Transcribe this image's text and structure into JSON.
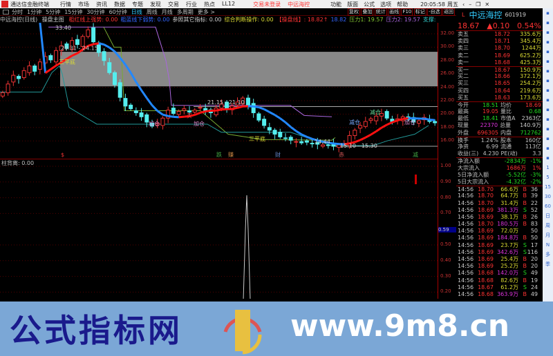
{
  "menubar": {
    "app_title": "通达信金融终端",
    "items": [
      "行情",
      "市场",
      "资讯",
      "数据",
      "专题",
      "发现",
      "交易",
      "行业",
      "热点",
      "LL12"
    ],
    "login": "交易未登录",
    "stock": "中远海控",
    "right": [
      "功能",
      "版面",
      "公式",
      "选项",
      "帮助"
    ],
    "clock": "20:05:58",
    "weekday": "周五"
  },
  "toolbar": {
    "periods": [
      "分时",
      "1分钟",
      "5分钟",
      "15分钟",
      "30分钟",
      "60分钟",
      "日线",
      "周线",
      "月线",
      "多周期",
      "更多 >"
    ],
    "active": "日线",
    "buttons": [
      "复权",
      "叠加",
      "统计",
      "画线",
      "F10",
      "标记",
      "-自选",
      "返回"
    ]
  },
  "chart_header": {
    "title": "中远海控(日线)",
    "indicator": "操盘主图",
    "items": [
      {
        "t": "粗红线上强势: 0.00",
        "c": "#f33"
      },
      {
        "t": "粗蓝线下弱势: 0.00",
        "c": "#36f"
      },
      {
        "t": "参照其它指标: 0.00",
        "c": "#ccc"
      },
      {
        "t": "综合判断操作: 0.00",
        "c": "#dd3"
      },
      {
        "t": "【操盘线】: 18.82↑",
        "c": "#f33"
      },
      {
        "t": "18.82",
        "c": "#36f"
      },
      {
        "t": "压力1: 19.57",
        "c": "#8c3"
      },
      {
        "t": "压力2: 19.57",
        "c": "#a6d"
      },
      {
        "t": "支撑: 18.29",
        "c": "#3cc"
      }
    ]
  },
  "chart_data": {
    "type": "candlestick",
    "y_ticks": [
      32,
      30,
      28,
      26,
      24,
      22,
      20,
      18,
      16
    ],
    "closes": [
      23.2,
      24.5,
      25.8,
      25.3,
      26.5,
      27.2,
      26.4,
      27.8,
      28.6,
      28.1,
      29.5,
      30.2,
      29.8,
      31.0,
      30.4,
      31.6,
      32.6,
      30.8,
      29.2,
      28.0,
      26.2,
      24.4,
      22.5,
      21.2,
      20.8,
      20.2,
      19.6,
      18.8,
      18.2,
      18.6,
      19.4,
      20.6,
      20.1,
      20.4,
      20.8,
      20.3,
      20.6,
      21.0,
      20.5,
      20.2,
      20.9,
      21.5,
      20.8,
      21.2,
      21.8,
      22.4,
      21.3,
      20.2,
      19.1,
      18.3,
      17.6,
      17.0,
      16.6,
      16.4,
      16.1,
      15.9,
      15.7,
      15.8,
      15.6,
      15.5,
      15.4,
      15.3,
      15.2,
      15.4,
      15.6,
      16.8,
      17.6,
      18.3,
      18.9,
      19.3,
      19.7,
      20.1,
      19.4,
      18.9,
      19.3,
      19.6,
      19.2,
      18.8,
      19.0,
      19.5,
      18.9,
      18.7
    ],
    "annotations": [
      "29.31 - 24.15",
      "21.15 - 21.10",
      "15.10 - 15.30",
      "14.44",
      "33.40"
    ],
    "signals": [
      "三平底",
      "加仓",
      "加仓",
      "买",
      "三平底",
      "减仓",
      "减仓",
      "加仓"
    ],
    "bottom_marks": [
      "$",
      "跌",
      "赚",
      "财",
      "赤",
      "减"
    ],
    "sub": {
      "title": "柱背离",
      "label": "柱背离: 0.00",
      "y_ticks": [
        1.0,
        0.9,
        0.8,
        0.7,
        0.5,
        0.4,
        0.3,
        0.2
      ],
      "current": "0.59"
    }
  },
  "quote": {
    "name": "中远海控",
    "code": "601919",
    "marker": "L",
    "price": "18.67",
    "change": "▲0.10",
    "pct": "0.54%",
    "asks": [
      [
        "卖五",
        "18.72",
        "335.6万"
      ],
      [
        "卖四",
        "18.71",
        "345.4万"
      ],
      [
        "卖三",
        "18.70",
        "1244万"
      ],
      [
        "卖二",
        "18.69",
        "625.2万"
      ],
      [
        "卖一",
        "18.68",
        "425.3万"
      ]
    ],
    "bids": [
      [
        "买一",
        "18.67",
        "150.9万"
      ],
      [
        "买二",
        "18.66",
        "372.1万"
      ],
      [
        "买三",
        "18.65",
        "254.2万"
      ],
      [
        "买四",
        "18.64",
        "219.6万"
      ],
      [
        "买五",
        "18.63",
        "173.6万"
      ]
    ],
    "stats": [
      [
        "今开",
        "18.51",
        "均价",
        "18.69"
      ],
      [
        "最高",
        "19.05",
        "量比",
        "0.68"
      ],
      [
        "最低",
        "18.41",
        "市值A",
        "2363亿"
      ],
      [
        "现量",
        "22370",
        "总量",
        "140.9万"
      ],
      [
        "外盘",
        "696305",
        "内盘",
        "712762"
      ]
    ],
    "fund": [
      [
        "换手",
        "1.24%",
        "股本",
        "160亿"
      ],
      [
        "净资",
        "6.99",
        "流通",
        "113亿"
      ],
      [
        "收益(三)",
        "4.230",
        "PE(动)",
        "3.3"
      ]
    ],
    "flow": [
      [
        "净流入额",
        "-2834万",
        "-1%"
      ],
      [
        "大宗流入",
        "1686万",
        "1%"
      ],
      [
        "5日净流入额",
        "-5.52亿",
        "-3%"
      ],
      [
        "5日大宗流入",
        "-4.32亿",
        "-2%"
      ]
    ],
    "ticks": [
      [
        "14:56",
        "18.70",
        "66.6万",
        "B",
        "36"
      ],
      [
        "14:56",
        "18.70",
        "64.7万",
        "B",
        "39"
      ],
      [
        "14:56",
        "18.70",
        "31.4万",
        "B",
        "22"
      ],
      [
        "14:56",
        "18.69",
        "381.3万",
        "S",
        "52"
      ],
      [
        "14:56",
        "18.69",
        "38.1万",
        "B",
        "26"
      ],
      [
        "14:56",
        "18.70",
        "180.5万",
        "B",
        "83"
      ],
      [
        "14:56",
        "18.69",
        "72.0万",
        "",
        "50"
      ],
      [
        "14:56",
        "18.69",
        "184.8万",
        "B",
        "50"
      ],
      [
        "14:56",
        "18.69",
        "23.7万",
        "S",
        "17"
      ],
      [
        "14:56",
        "18.69",
        "342.6万",
        "S",
        "116"
      ],
      [
        "14:56",
        "18.69",
        "25.4万",
        "B",
        "20"
      ],
      [
        "14:56",
        "18.69",
        "25.2万",
        "B",
        "20"
      ],
      [
        "14:56",
        "18.68",
        "142.0万",
        "S",
        "49"
      ],
      [
        "14:56",
        "18.68",
        "82.6万",
        "B",
        "19"
      ],
      [
        "14:56",
        "18.67",
        "61.2万",
        "S",
        "24"
      ],
      [
        "14:56",
        "18.68",
        "363.9万",
        "B",
        "49"
      ]
    ]
  },
  "side_icons": [
    "1",
    "5",
    "15",
    "30",
    "60",
    "日",
    "周",
    "月",
    "N",
    "多",
    "季"
  ],
  "banner": {
    "left": "公式指标网",
    "right": "www.9m8.cn",
    "seal": "www.9m8.cn"
  }
}
